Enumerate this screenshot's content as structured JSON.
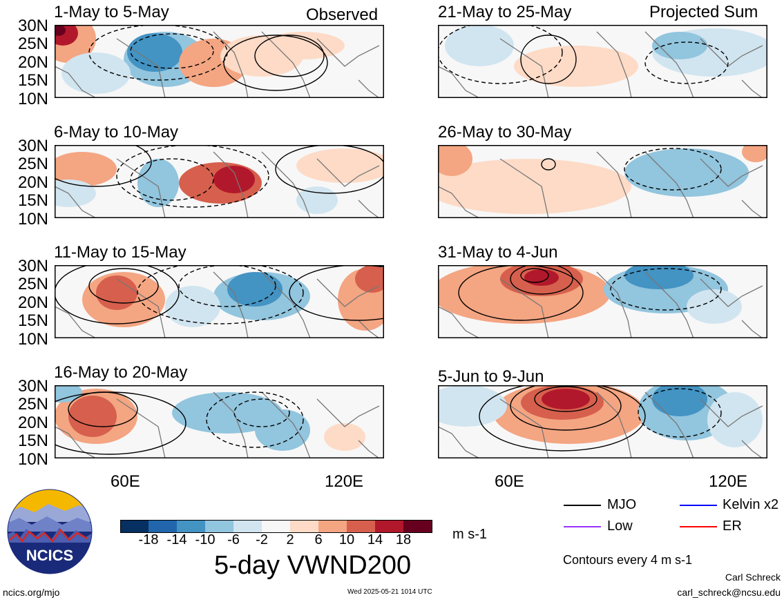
{
  "panels": [
    {
      "title": "1-May to 5-May",
      "tag": "Observed"
    },
    {
      "title": "6-May to 10-May",
      "tag": ""
    },
    {
      "title": "11-May to 15-May",
      "tag": ""
    },
    {
      "title": "16-May to 20-May",
      "tag": ""
    },
    {
      "title": "21-May to 25-May",
      "tag": "Projected Sum"
    },
    {
      "title": "26-May to 30-May",
      "tag": ""
    },
    {
      "title": "31-May to 4-Jun",
      "tag": ""
    },
    {
      "title": "5-Jun to 9-Jun",
      "tag": ""
    }
  ],
  "lat_labels": [
    "30N",
    "25N",
    "20N",
    "15N",
    "10N"
  ],
  "lon_labels": [
    "60E",
    "120E"
  ],
  "colorbar": {
    "ticks": [
      "-18",
      "-14",
      "-10",
      "-6",
      "-2",
      "2",
      "6",
      "10",
      "14",
      "18"
    ],
    "units": "m s-1",
    "colors": [
      "#053061",
      "#2166ac",
      "#4393c3",
      "#92c5de",
      "#d1e5f0",
      "#f7f7f7",
      "#fddbc7",
      "#f4a582",
      "#d6604d",
      "#b2182b",
      "#67001f"
    ]
  },
  "main_title": "5-day VWND200",
  "legend": [
    {
      "label": "MJO",
      "color": "#000000"
    },
    {
      "label": "Kelvin x2",
      "color": "#0000ff"
    },
    {
      "label": "Low",
      "color": "#9933ff"
    },
    {
      "label": "ER",
      "color": "#ff0000"
    }
  ],
  "contour_note": "Contours every 4 m s-1",
  "footer": {
    "logo_text": "NCICS",
    "url": "ncics.org/mjo",
    "timestamp": "Wed 2025-05-21 1014 UTC",
    "author": "Carl Schreck",
    "email": "carl_schreck@ncsu.edu"
  }
}
